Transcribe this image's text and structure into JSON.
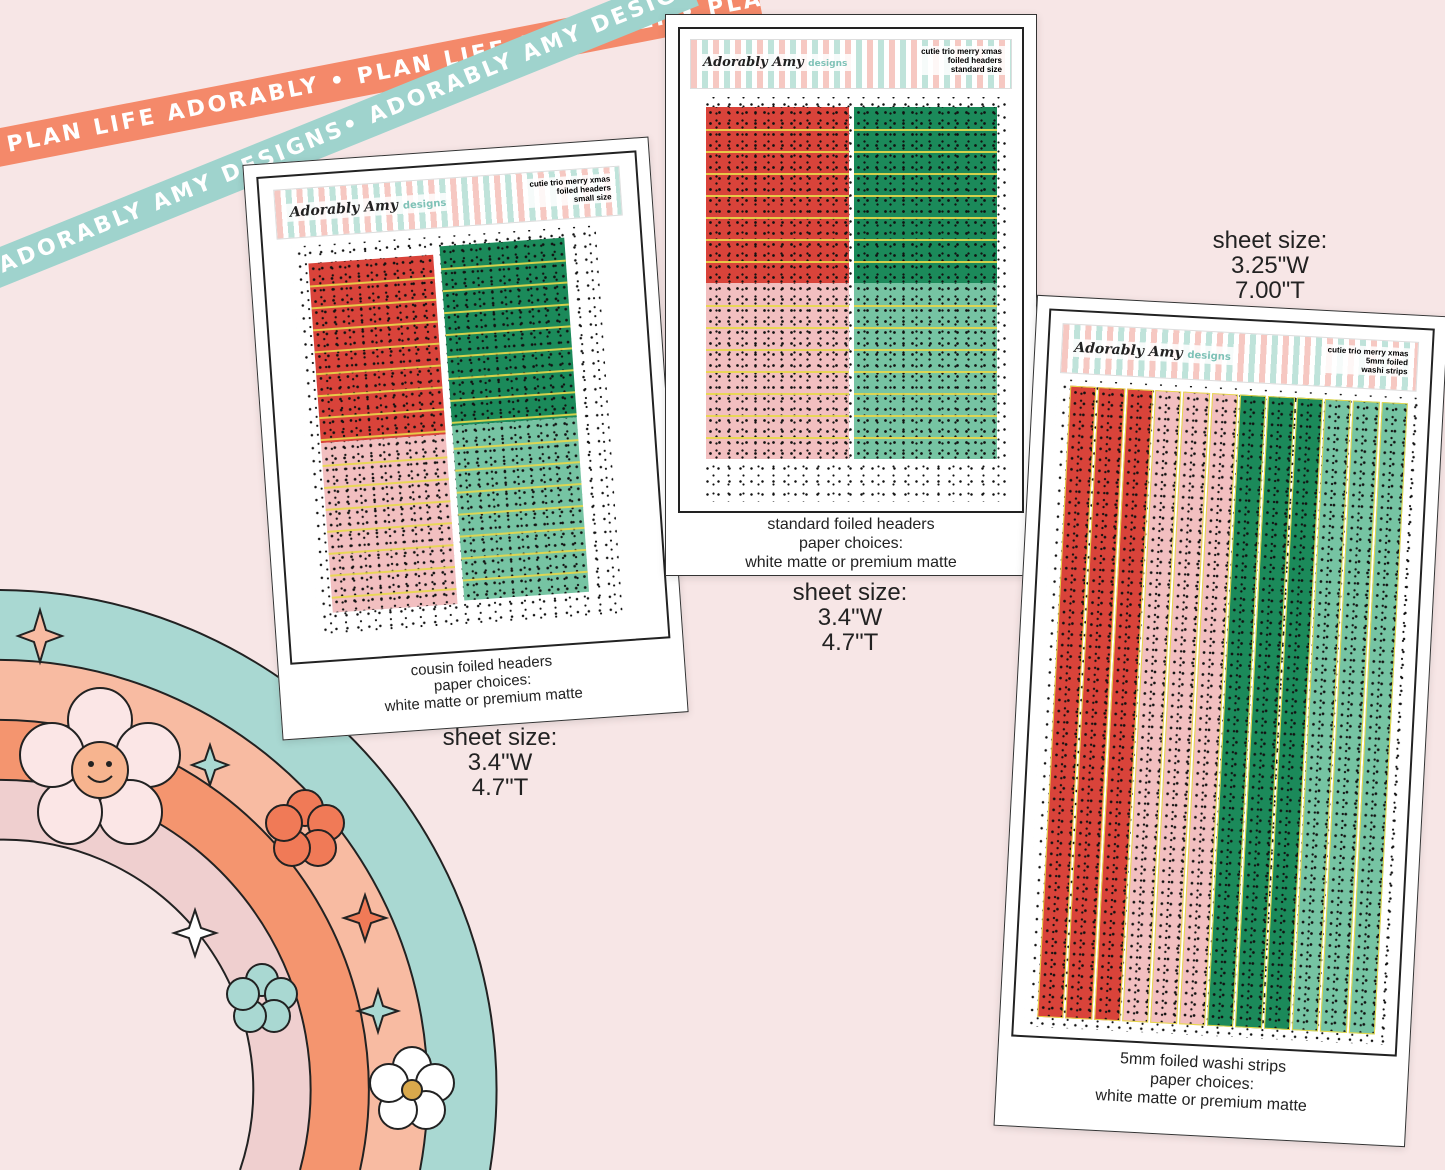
{
  "ribbons": {
    "orange": "PLAN LIFE ADORABLY • PLAN LIFE ADORABLY • PLAN LIFE ADORABLY",
    "teal": "ADORABLY AMY DESIGNS• ADORABLY AMY DESIGNS• ADORABLY AMY DESIGNS"
  },
  "brand": {
    "name": "Adorably Amy",
    "sub": "designs"
  },
  "sheets": [
    {
      "meta": [
        "cutie trio merry xmas",
        "foiled headers",
        "small size"
      ],
      "caption": [
        "cousin foiled headers",
        "paper choices:",
        "white matte or premium matte"
      ],
      "size": [
        "sheet size:",
        "3.4\"W",
        "4.7\"T"
      ]
    },
    {
      "meta": [
        "cutie trio merry xmas",
        "foiled headers",
        "standard size"
      ],
      "caption": [
        "standard foiled headers",
        "paper choices:",
        "white matte or premium matte"
      ],
      "size": [
        "sheet size:",
        "3.4\"W",
        "4.7\"T"
      ]
    },
    {
      "meta": [
        "cutie trio merry xmas",
        "5mm foiled",
        "washi strips"
      ],
      "caption": [
        "5mm foiled washi strips",
        "paper choices:",
        "white matte or premium matte"
      ],
      "size": [
        "sheet size:",
        "3.25\"W",
        "7.00\"T"
      ]
    }
  ],
  "colors": {
    "red": "#d9433a",
    "dark_green": "#1b8a5a",
    "pink": "#f2bfc0",
    "mint": "#76c4a3",
    "foil": "#e8d84a"
  }
}
